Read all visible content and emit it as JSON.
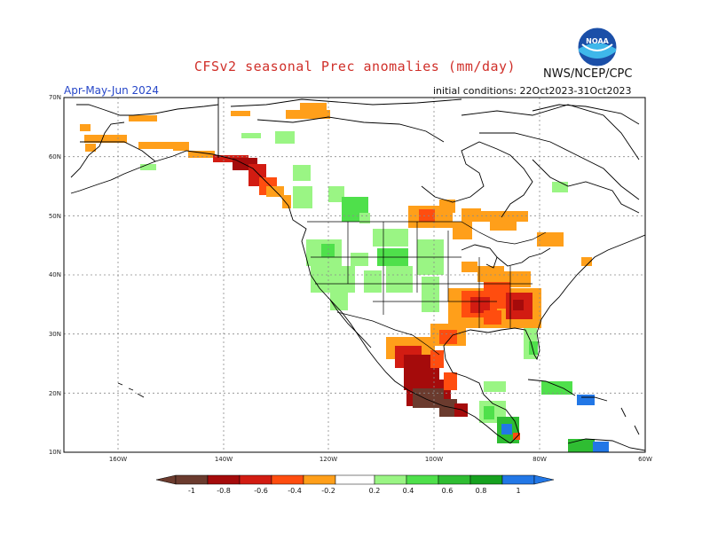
{
  "header": {
    "title": "CFSv2 seasonal Prec anomalies (mm/day)",
    "season": "Apr-May-Jun 2024",
    "initial_conditions": "initial conditions: 22Oct2023-31Oct2023",
    "agency": "NWS/NCEP/CPC",
    "logo_text": "NOAA"
  },
  "axes": {
    "lat_labels": [
      "70N",
      "60N",
      "50N",
      "40N",
      "30N",
      "20N",
      "10N"
    ],
    "lon_labels": [
      "160W",
      "140W",
      "120W",
      "100W",
      "80W",
      "60W"
    ]
  },
  "legend": {
    "labels": [
      "-1",
      "-0.8",
      "-0.6",
      "-0.4",
      "-0.2",
      "0.2",
      "0.4",
      "0.6",
      "0.8",
      "1"
    ],
    "colors": [
      "#6b3b2e",
      "#a50b0b",
      "#d21c12",
      "#ff4d0f",
      "#ff9f1a",
      "#ffffff",
      "#9af584",
      "#4fe04b",
      "#2fbd32",
      "#16a11f",
      "#2277e6"
    ]
  },
  "colors": {
    "title": "#d0302a",
    "season": "#2646c8",
    "grid": "#8a8a8a",
    "coast": "#000000"
  }
}
